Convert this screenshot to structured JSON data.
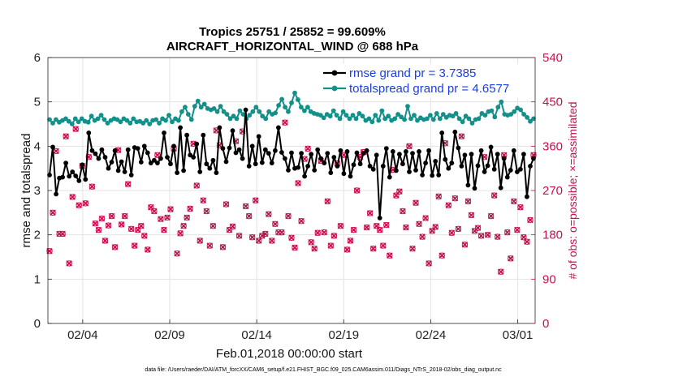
{
  "chart_data": {
    "type": "line",
    "title_line1": "Tropics 25751 / 25852 = 99.609%",
    "title_line2": "AIRCRAFT_HORIZONTAL_WIND @ 688 hPa",
    "xlabel": "Feb.01,2018 00:00:00 start",
    "ylabel": "rmse and totalspread",
    "y2label": "# of obs: o=possible; ×=assimilated",
    "footer": "data file: /Users/raeder/DAI/ATM_forcXX/CAM6_setup/f.e21.FHIST_BGC.f09_025.CAM6assim.011/Diags_NTrS_2018-02/obs_diag_output.nc",
    "xlim": [
      1,
      29
    ],
    "ylim": [
      0,
      6
    ],
    "y2lim": [
      0,
      540
    ],
    "x_ticks": [
      3,
      8,
      13,
      18,
      23,
      28
    ],
    "x_tick_labels": [
      "02/04",
      "02/09",
      "02/14",
      "02/19",
      "02/24",
      "03/01"
    ],
    "y_ticks": [
      "0",
      "1",
      "2",
      "3",
      "4",
      "5",
      "6"
    ],
    "y2_ticks": [
      "0",
      "90",
      "180",
      "270",
      "360",
      "450",
      "540"
    ],
    "grid": true,
    "legend_position": "top-right",
    "colors": {
      "rmse": "#000000",
      "spread": "#12908a",
      "obs": "#c8104f",
      "legend_text": "#1a3fe0"
    },
    "series": [
      {
        "name": "rmse grand pr = 3.7385",
        "key": "rmse",
        "values": [
          3.35,
          3.98,
          2.92,
          3.28,
          3.3,
          3.62,
          3.32,
          3.42,
          3.33,
          3.22,
          3.58,
          3.25,
          4.3,
          3.9,
          3.83,
          3.72,
          3.92,
          3.75,
          3.5,
          3.64,
          3.9,
          3.45,
          3.65,
          3.42,
          3.92,
          3.35,
          3.97,
          3.95,
          3.64,
          4.0,
          3.85,
          3.62,
          3.68,
          3.62,
          3.72,
          4.3,
          3.75,
          3.6,
          4.0,
          3.4,
          4.42,
          3.45,
          4.25,
          3.8,
          3.75,
          4.05,
          3.42,
          4.25,
          3.6,
          3.5,
          3.68,
          3.4,
          4.42,
          3.95,
          3.65,
          3.96,
          4.35,
          3.85,
          3.92,
          3.72,
          4.82,
          3.55,
          4.0,
          3.6,
          4.22,
          3.63,
          3.92,
          3.84,
          3.62,
          3.9,
          4.42,
          3.86,
          3.72,
          3.46,
          3.85,
          3.5,
          3.52,
          3.84,
          3.32,
          3.55,
          3.82,
          3.46,
          3.92,
          3.72,
          3.62,
          3.84,
          3.4,
          3.75,
          3.55,
          3.9,
          3.38,
          3.88,
          3.32,
          3.58,
          3.85,
          3.6,
          3.84,
          3.9,
          3.55,
          3.48,
          3.8,
          2.38,
          3.55,
          3.95,
          3.3,
          3.88,
          3.45,
          3.82,
          3.6,
          3.88,
          3.42,
          3.84,
          3.46,
          3.88,
          3.35,
          3.62,
          3.9,
          3.34,
          3.66,
          3.35,
          4.3,
          3.7,
          3.5,
          3.62,
          4.32,
          3.96,
          3.55,
          3.8,
          3.12,
          3.82,
          3.05,
          3.56,
          3.9,
          3.42,
          3.56,
          3.98,
          3.48,
          3.82,
          3.06,
          3.72,
          3.3,
          3.46,
          3.9,
          3.42,
          3.48,
          3.82,
          2.86,
          3.55,
          3.72
        ],
        "draw_style": "line+markers"
      },
      {
        "name": "totalspread grand pr = 4.6577",
        "key": "spread",
        "values": [
          4.6,
          4.52,
          4.6,
          4.54,
          4.58,
          4.62,
          4.56,
          4.5,
          4.62,
          4.55,
          4.62,
          4.56,
          4.54,
          4.68,
          4.58,
          4.62,
          4.7,
          4.6,
          4.52,
          4.58,
          4.62,
          4.6,
          4.55,
          4.62,
          4.58,
          4.52,
          4.62,
          4.55,
          4.56,
          4.52,
          4.58,
          4.5,
          4.58,
          4.6,
          4.52,
          4.62,
          4.58,
          4.7,
          4.55,
          4.62,
          4.58,
          4.78,
          4.88,
          4.72,
          4.6,
          4.9,
          5.02,
          4.88,
          4.95,
          4.85,
          4.82,
          4.85,
          4.78,
          4.9,
          4.78,
          4.72,
          4.62,
          4.68,
          4.62,
          4.8,
          4.72,
          4.62,
          4.7,
          4.78,
          4.88,
          4.78,
          4.68,
          4.62,
          4.78,
          4.72,
          4.75,
          4.92,
          5.06,
          4.88,
          4.78,
          4.98,
          5.2,
          5.05,
          4.88,
          4.8,
          4.88,
          4.78,
          4.74,
          4.72,
          4.7,
          4.64,
          4.72,
          4.68,
          4.8,
          4.7,
          4.62,
          4.78,
          4.7,
          4.62,
          4.7,
          4.62,
          4.74,
          4.68,
          4.58,
          4.62,
          4.55,
          4.7,
          4.58,
          4.8,
          4.62,
          4.68,
          4.58,
          4.62,
          4.72,
          4.66,
          4.6,
          4.9,
          4.62,
          4.7,
          4.58,
          4.64,
          4.6,
          4.62,
          4.7,
          4.6,
          4.74,
          4.62,
          4.72,
          4.65,
          4.7,
          4.68,
          4.74,
          4.62,
          4.55,
          4.68,
          4.62,
          4.52,
          4.6,
          4.62,
          4.74,
          4.7,
          4.78,
          4.8,
          4.66,
          4.88,
          5.0,
          4.72,
          4.7,
          4.72,
          4.78,
          4.86,
          4.82,
          4.72,
          4.65,
          4.56,
          4.62
        ]
      },
      {
        "name": "obs possible (o)",
        "key": "obs_possible",
        "axis": "right",
        "values": [
          147,
          225,
          350,
          182,
          182,
          380,
          122,
          257,
          395,
          240,
          320,
          244,
          338,
          278,
          203,
          190,
          213,
          168,
          199,
          218,
          155,
          352,
          201,
          218,
          283,
          192,
          158,
          190,
          198,
          178,
          150,
          236,
          228,
          342,
          212,
          190,
          215,
          232,
          355,
          142,
          183,
          198,
          215,
          233,
          365,
          280,
          168,
          250,
          228,
          158,
          198,
          392,
          362,
          155,
          242,
          190,
          197,
          370,
          178,
          390,
          238,
          218,
          175,
          250,
          168,
          178,
          182,
          222,
          168,
          202,
          185,
          185,
          408,
          218,
          174,
          154,
          285,
          208,
          334,
          355,
          165,
          152,
          184,
          330,
          185,
          248,
          158,
          178,
          325,
          198,
          342,
          150,
          168,
          190,
          270,
          338,
          348,
          195,
          224,
          152,
          198,
          190,
          158,
          200,
          138,
          312,
          260,
          268,
          228,
          195,
          360,
          152,
          245,
          202,
          176,
          214,
          122,
          188,
          196,
          258,
          138,
          366,
          240,
          184,
          254,
          192,
          380,
          160,
          248,
          220,
          188,
          194,
          178,
          338,
          180,
          218,
          260,
          176,
          105,
          342,
          185,
          132,
          248,
          190,
          236,
          175,
          166,
          210,
          342
        ],
        "draw_style": "markers-o"
      },
      {
        "name": "obs assimilated (×)",
        "key": "obs_assimilated",
        "axis": "right",
        "values": [
          147,
          225,
          350,
          182,
          182,
          380,
          122,
          257,
          395,
          240,
          320,
          244,
          338,
          278,
          203,
          190,
          213,
          168,
          199,
          218,
          155,
          352,
          201,
          218,
          283,
          192,
          158,
          190,
          198,
          178,
          150,
          236,
          228,
          342,
          212,
          190,
          215,
          232,
          355,
          142,
          183,
          198,
          215,
          233,
          365,
          280,
          168,
          250,
          228,
          158,
          198,
          392,
          362,
          155,
          242,
          190,
          197,
          370,
          178,
          390,
          238,
          218,
          175,
          250,
          168,
          178,
          182,
          222,
          168,
          202,
          185,
          185,
          408,
          218,
          174,
          154,
          285,
          208,
          334,
          355,
          165,
          152,
          184,
          330,
          185,
          248,
          158,
          178,
          325,
          198,
          342,
          150,
          168,
          190,
          270,
          338,
          348,
          195,
          224,
          152,
          198,
          190,
          158,
          200,
          138,
          312,
          260,
          268,
          228,
          195,
          360,
          152,
          245,
          202,
          176,
          214,
          122,
          188,
          196,
          258,
          138,
          366,
          240,
          184,
          254,
          192,
          380,
          160,
          248,
          220,
          188,
          194,
          178,
          338,
          180,
          218,
          260,
          176,
          105,
          342,
          185,
          132,
          248,
          190,
          236,
          175,
          166,
          210,
          342
        ],
        "draw_style": "markers-x"
      }
    ]
  }
}
